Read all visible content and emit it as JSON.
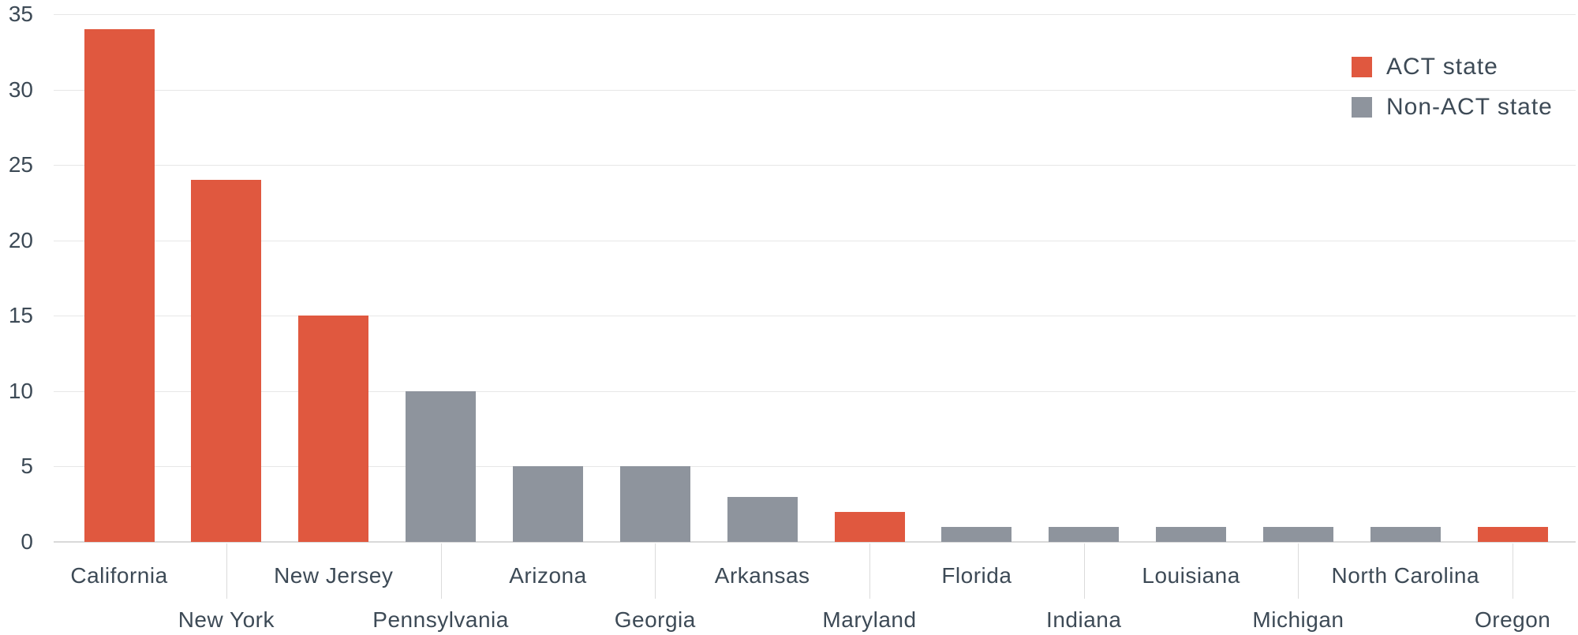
{
  "chart_data": {
    "type": "bar",
    "title": "",
    "xlabel": "",
    "ylabel": "",
    "categories": [
      "California",
      "New York",
      "New Jersey",
      "Pennsylvania",
      "Arizona",
      "Georgia",
      "Arkansas",
      "Maryland",
      "Florida",
      "Indiana",
      "Louisiana",
      "Michigan",
      "North Carolina",
      "Oregon"
    ],
    "values": [
      34,
      24,
      15,
      10,
      5,
      5,
      3,
      2,
      1,
      1,
      1,
      1,
      1,
      1
    ],
    "series_membership": [
      "ACT state",
      "ACT state",
      "ACT state",
      "Non-ACT state",
      "Non-ACT state",
      "Non-ACT state",
      "Non-ACT state",
      "ACT state",
      "Non-ACT state",
      "Non-ACT state",
      "Non-ACT state",
      "Non-ACT state",
      "Non-ACT state",
      "ACT state"
    ],
    "yticks": [
      0,
      5,
      10,
      15,
      20,
      25,
      30,
      35
    ],
    "ylim": [
      0,
      35
    ],
    "grid": "horizontal",
    "x_label_layout": "staggered-two-rows",
    "legend": {
      "position": "top-right",
      "entries": [
        {
          "label": "ACT state",
          "color": "#E0583F"
        },
        {
          "label": "Non-ACT state",
          "color": "#8E949D"
        }
      ]
    }
  },
  "colors": {
    "act": "#E0583F",
    "non_act": "#8E949D",
    "text": "#3D4A56",
    "gridline": "#E7E7E7",
    "axis": "#D9D9D9",
    "separator": "#DBDBDB",
    "background": "#FFFFFF"
  }
}
